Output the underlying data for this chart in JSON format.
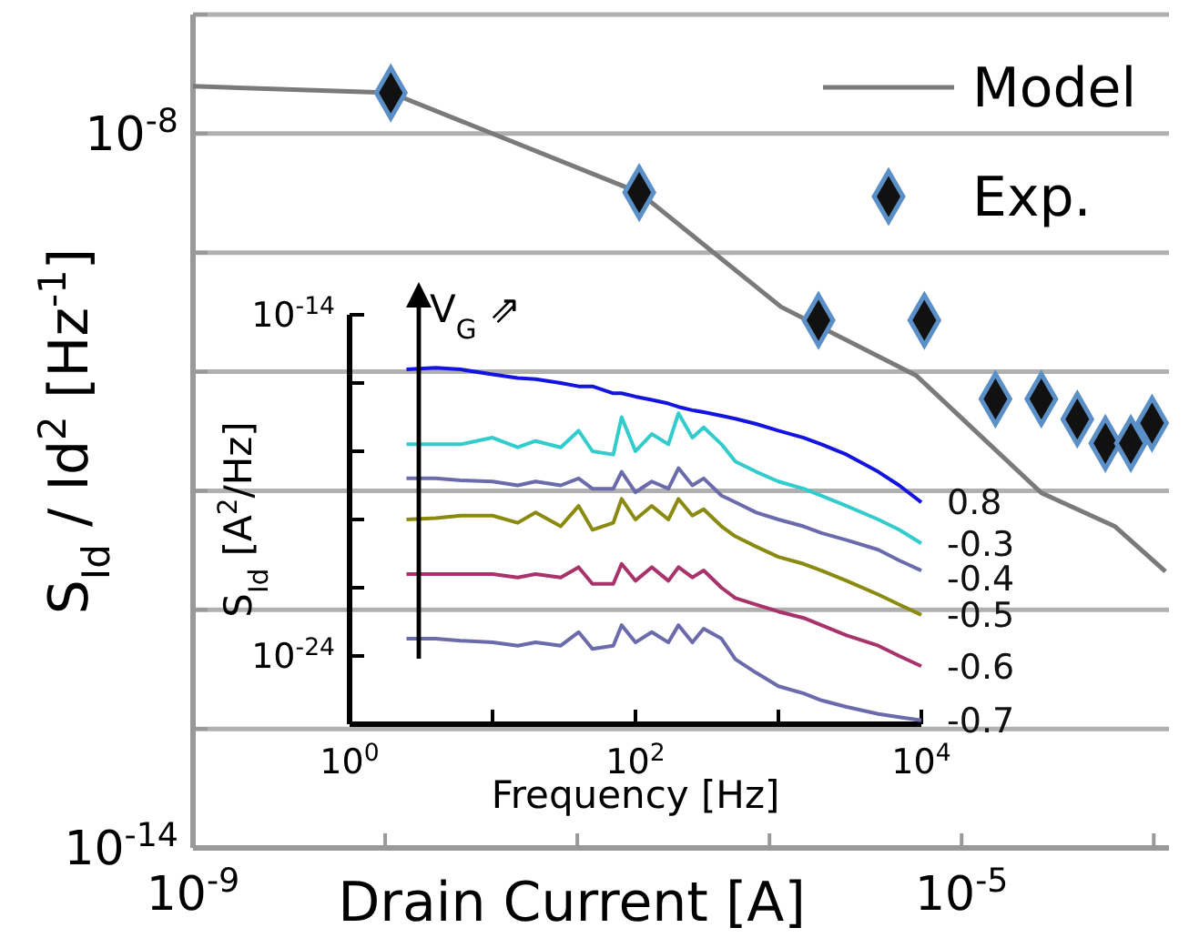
{
  "chart_data": [
    {
      "type": "line",
      "xlabel": "Drain Current  [A]",
      "ylabel": "S$_{Id}$ / Id$^{2}$ [Hz$^{-1}$]",
      "log": "xy",
      "xlim": [
        1e-09,
        0.00012
      ],
      "ylim": [
        1e-14,
        1e-07
      ],
      "xticks": [
        {
          "value": 1e-09,
          "label": "10$^{-9}$"
        },
        {
          "value": 1e-08,
          "label": null
        },
        {
          "value": 1e-07,
          "label": null
        },
        {
          "value": 1e-06,
          "label": null
        },
        {
          "value": 1e-05,
          "label": "10$^{-5}$"
        },
        {
          "value": 0.0001,
          "label": null
        }
      ],
      "yticks": [
        {
          "value": 1e-14,
          "label": "10$^{-14}$"
        },
        {
          "value": 1e-13,
          "label": null
        },
        {
          "value": 1e-12,
          "label": null
        },
        {
          "value": 1e-11,
          "label": null
        },
        {
          "value": 1e-10,
          "label": null
        },
        {
          "value": 1e-09,
          "label": null
        },
        {
          "value": 1e-08,
          "label": "10$^{-8}$"
        },
        {
          "value": 1e-07,
          "label": null
        }
      ],
      "grid": "y",
      "legend": "top right",
      "series": [
        {
          "name": "Model",
          "color": "#7a7a7a",
          "x": [
            1e-09,
            1.07e-08,
            2.1e-07,
            1.15e-06,
            5.8e-06,
            2.6e-05,
            6.3e-05,
            0.000115
          ],
          "values": [
            2.5e-08,
            2.2e-08,
            3.2e-09,
            3.5e-10,
            9.3e-11,
            9.6e-12,
            5e-12,
            2.1e-12
          ]
        },
        {
          "name": "Exp.",
          "type": "scatter",
          "marker": "diamond",
          "color": "#111111",
          "x": [
            1.07e-08,
            2.1e-07,
            1.8e-06,
            6.4e-06,
            1.5e-05,
            2.6e-05,
            4e-05,
            5.6e-05,
            7.6e-05,
            9.8e-05
          ],
          "values": [
            2.2e-08,
            3.2e-09,
            2.7e-10,
            2.7e-10,
            5.9e-11,
            5.9e-11,
            4e-11,
            2.5e-11,
            2.5e-11,
            3.7e-11
          ]
        }
      ]
    },
    {
      "type": "line",
      "xlabel": "Frequency [Hz]",
      "ylabel": "S$_{Id}$ [A$^{2}$/Hz]",
      "log": "xy",
      "xlim": [
        1,
        10000.0
      ],
      "ylim": [
        1e-26,
        1e-14
      ],
      "xticks": [
        {
          "value": 1,
          "label": "10$^{0}$"
        },
        {
          "value": 10,
          "label": null
        },
        {
          "value": 100,
          "label": "10$^{2}$"
        },
        {
          "value": 1000,
          "label": null
        },
        {
          "value": 10000,
          "label": "10$^{4}$"
        }
      ],
      "yticks": [
        {
          "value": 1e-14,
          "label": "10$^{-14}$"
        },
        {
          "value": 1e-16,
          "label": null
        },
        {
          "value": 1e-18,
          "label": null
        },
        {
          "value": 1e-20,
          "label": null
        },
        {
          "value": 1e-22,
          "label": null
        },
        {
          "value": 1e-24,
          "label": "10$^{-24}$"
        }
      ],
      "grid": false,
      "legend": false,
      "annotations": [
        "V$_{G}$ ⇗"
      ],
      "x": [
        2.5,
        4,
        6,
        10,
        15,
        20,
        30,
        40,
        50,
        70,
        80,
        100,
        130,
        170,
        200,
        250,
        300,
        400,
        500,
        700,
        1000,
        1500,
        2000,
        3000,
        5000,
        7000,
        10000
      ],
      "series": [
        {
          "name": "0.8",
          "color": "#1414e0",
          "values": [
            2.5e-16,
            2.8e-16,
            2.5e-16,
            1.8e-16,
            1.4e-16,
            1.3e-16,
            1e-16,
            8e-17,
            8e-17,
            5e-17,
            5e-17,
            4e-17,
            3.2e-17,
            2.5e-17,
            2e-17,
            1.6e-17,
            1.4e-17,
            1.1e-17,
            9e-18,
            6.3e-18,
            4e-18,
            2.5e-18,
            1.6e-18,
            8e-19,
            2.5e-19,
            1e-19,
            3.2e-20
          ]
        },
        {
          "name": "-0.3",
          "color": "#33cccc",
          "values": [
            1.6e-18,
            1.6e-18,
            1.6e-18,
            2.5e-18,
            1.3e-18,
            2e-18,
            1.3e-18,
            4e-18,
            1e-18,
            8e-19,
            1e-17,
            1e-18,
            3.2e-18,
            1.6e-18,
            1.3e-17,
            2.5e-18,
            5e-18,
            1.6e-18,
            5e-19,
            2.5e-19,
            1.3e-19,
            8e-20,
            5e-20,
            2.5e-20,
            1e-20,
            5e-21,
            2e-21
          ]
        },
        {
          "name": "-0.4",
          "color": "#6b6bab",
          "values": [
            1.6e-19,
            1.6e-19,
            1.4e-19,
            1.3e-19,
            1e-19,
            1.3e-19,
            1e-19,
            1.6e-19,
            8e-20,
            8e-20,
            2.5e-19,
            6.3e-20,
            1.3e-19,
            8e-20,
            3.2e-19,
            1e-19,
            1.6e-19,
            5e-20,
            3.2e-20,
            1.6e-20,
            1e-20,
            6.3e-21,
            4e-21,
            2.5e-21,
            1.3e-21,
            6.3e-22,
            3.2e-22
          ]
        },
        {
          "name": "-0.5",
          "color": "#8a8a10",
          "values": [
            1e-20,
            1.1e-20,
            1.3e-20,
            1.3e-20,
            8e-21,
            1.6e-20,
            6.3e-21,
            2.5e-20,
            5e-21,
            8e-21,
            4e-20,
            1e-20,
            2.5e-20,
            1e-20,
            4e-20,
            1.3e-20,
            2e-20,
            6.3e-21,
            3.2e-21,
            1.6e-21,
            8e-22,
            5e-22,
            3.2e-22,
            1.6e-22,
            6.3e-23,
            3.2e-23,
            1.6e-23
          ]
        },
        {
          "name": "-0.6",
          "color": "#a8336a",
          "values": [
            2.5e-22,
            2.5e-22,
            2.5e-22,
            2.5e-22,
            2e-22,
            2.5e-22,
            2e-22,
            4e-22,
            1.3e-22,
            1.3e-22,
            5e-22,
            1.6e-22,
            4e-22,
            1.6e-22,
            4e-22,
            2e-22,
            3.2e-22,
            1e-22,
            5e-23,
            3.2e-23,
            2e-23,
            1.3e-23,
            8e-24,
            4e-24,
            2e-24,
            1e-24,
            5e-25
          ]
        },
        {
          "name": "-0.7",
          "color": "#6b6bab",
          "values": [
            3.2e-24,
            3.2e-24,
            2.8e-24,
            2.5e-24,
            2e-24,
            2.5e-24,
            2e-24,
            5e-24,
            1.6e-24,
            2e-24,
            8e-24,
            2.5e-24,
            5e-24,
            2.5e-24,
            8e-24,
            2.5e-24,
            6.3e-24,
            3.2e-24,
            8e-25,
            3.2e-25,
            1.3e-25,
            8e-26,
            5e-26,
            3.2e-26,
            2e-26,
            1.6e-26,
            1.3e-26
          ]
        }
      ]
    }
  ]
}
